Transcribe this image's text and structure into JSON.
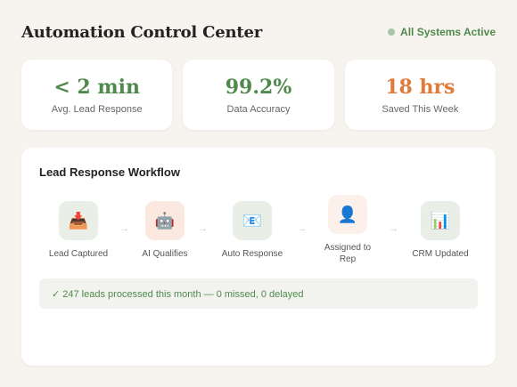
{
  "header": {
    "title": "Automation Control Center",
    "status": "All Systems Active"
  },
  "stats": [
    {
      "value": "< 2 min",
      "label": "Avg. Lead Response",
      "color": "#4f8a4c"
    },
    {
      "value": "99.2%",
      "label": "Data Accuracy",
      "color": "#4f8a4c"
    },
    {
      "value": "18 hrs",
      "label": "Saved This Week",
      "color": "#e07b3a"
    }
  ],
  "workflow": {
    "title": "Lead Response Workflow",
    "steps": [
      {
        "label": "Lead Captured",
        "icon": "📥",
        "icon_name": "inbox-tray-icon",
        "bg": "#e9efe6"
      },
      {
        "label": "AI Qualifies",
        "icon": "🤖",
        "icon_name": "robot-icon",
        "bg": "#fbe9e0"
      },
      {
        "label": "Auto Response",
        "icon": "📧",
        "icon_name": "email-icon",
        "bg": "#e9efe6"
      },
      {
        "label": "Assigned to Rep",
        "icon": "👤",
        "icon_name": "person-icon",
        "bg": "#fbf1ea"
      },
      {
        "label": "CRM Updated",
        "icon": "📊",
        "icon_name": "bar-chart-icon",
        "bg": "#e9efe6"
      }
    ],
    "arrow": "→",
    "summary": "✓ 247 leads processed this month — 0 missed, 0 delayed"
  }
}
